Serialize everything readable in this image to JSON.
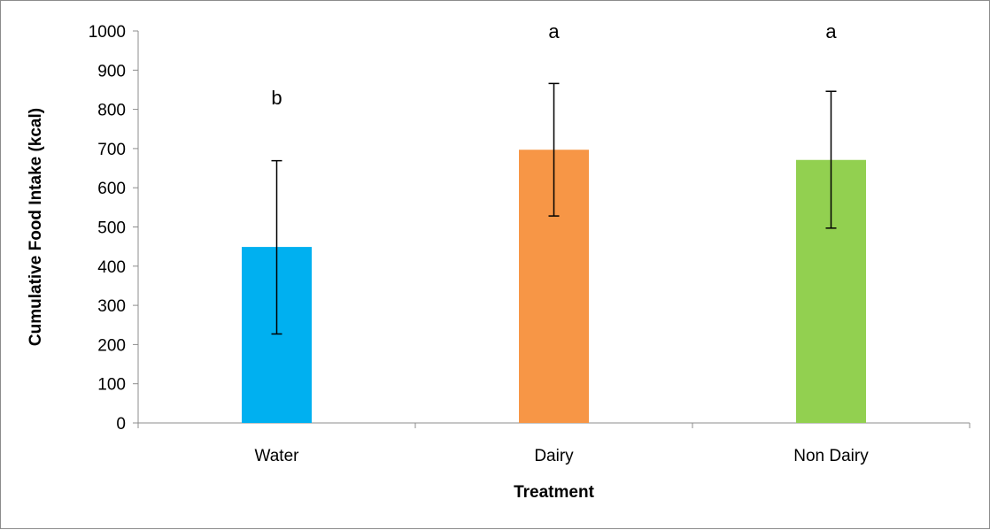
{
  "chart_data": {
    "type": "bar",
    "title": "",
    "xlabel": "Treatment",
    "ylabel": "Cumulative Food Intake (kcal)",
    "ylim": [
      0,
      1000
    ],
    "yticks": [
      "0",
      "100",
      "200",
      "300",
      "400",
      "500",
      "600",
      "700",
      "800",
      "900",
      "1000"
    ],
    "categories": [
      "Water",
      "Dairy",
      "Non Dairy"
    ],
    "values": [
      449,
      697,
      671
    ],
    "error_low": [
      227,
      528,
      497
    ],
    "error_high": [
      669,
      866,
      846
    ],
    "significance_labels": [
      "b",
      "a",
      "a"
    ],
    "colors": [
      "#00b0f0",
      "#f79646",
      "#92d050"
    ],
    "grid": false,
    "legend": "none"
  }
}
